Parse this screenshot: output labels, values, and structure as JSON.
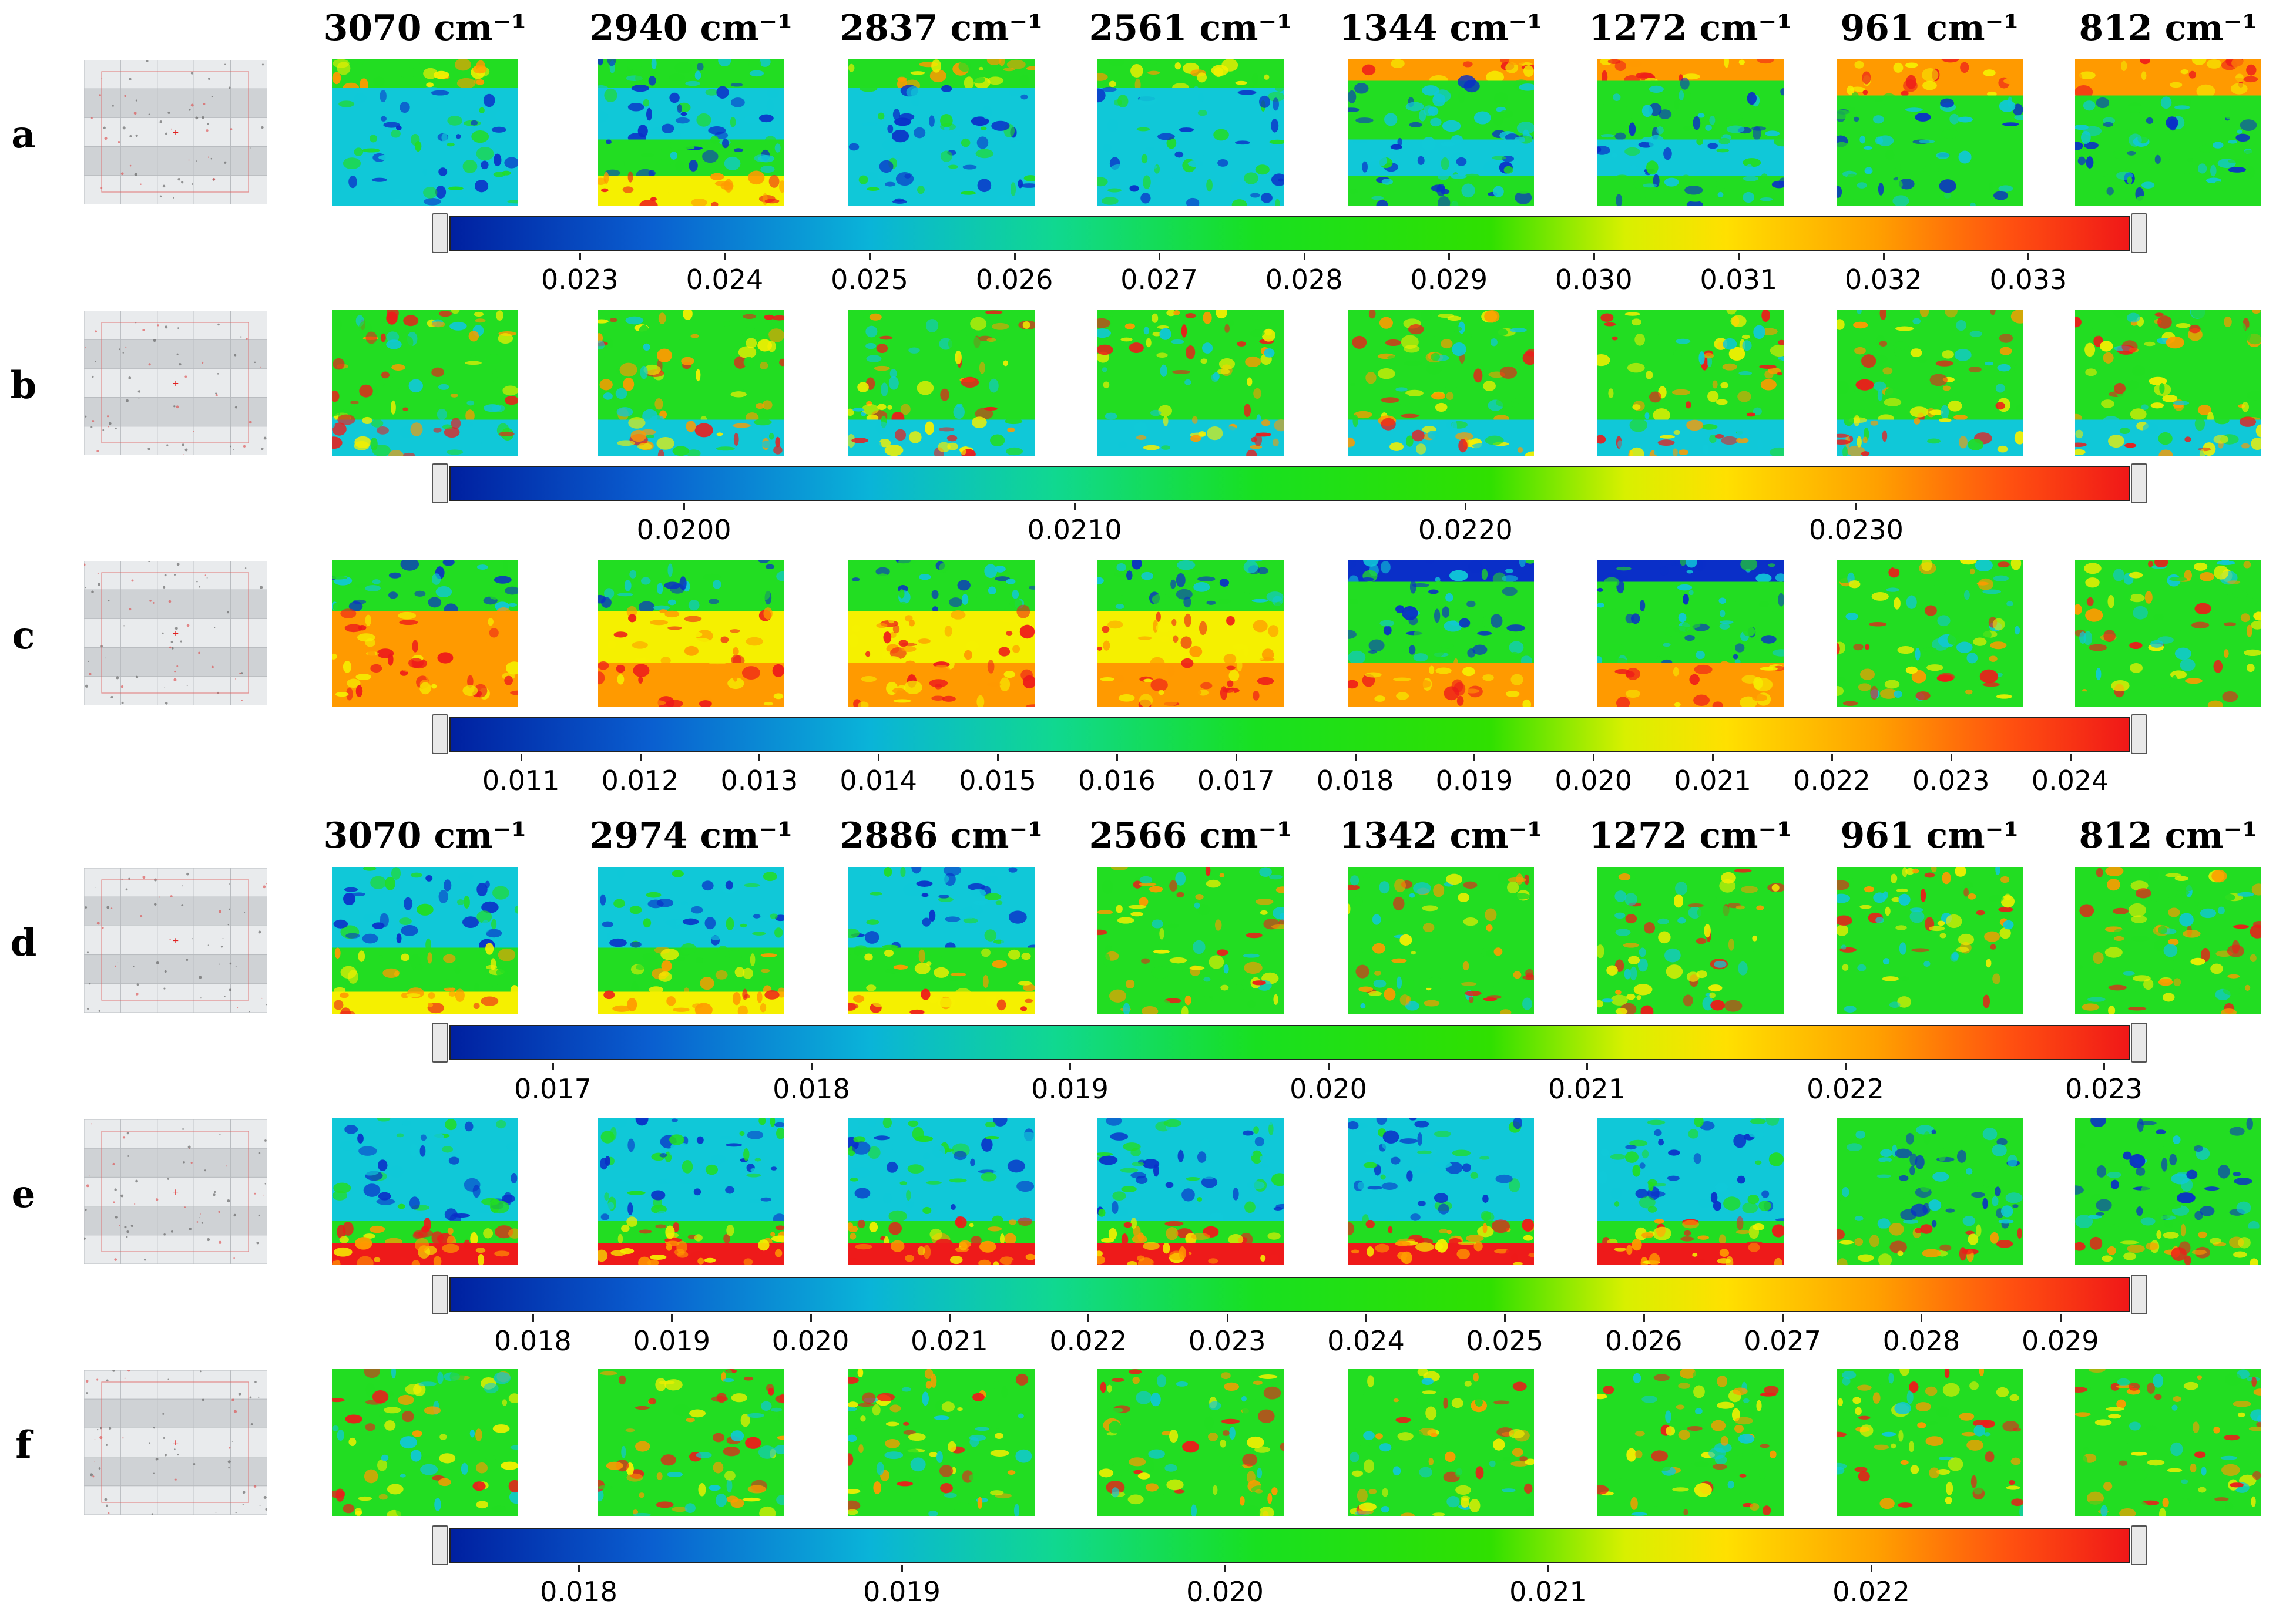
{
  "figure": {
    "headers_top": [
      "3070 cm⁻¹",
      "2940 cm⁻¹",
      "2837 cm⁻¹",
      "2561 cm⁻¹",
      "1344 cm⁻¹",
      "1272 cm⁻¹",
      "961 cm⁻¹",
      "812 cm⁻¹"
    ],
    "headers_bottom": [
      "3070 cm⁻¹",
      "2974 cm⁻¹",
      "2886 cm⁻¹",
      "2566 cm⁻¹",
      "1342 cm⁻¹",
      "1272 cm⁻¹",
      "961 cm⁻¹",
      "812 cm⁻¹"
    ],
    "rows": [
      {
        "label": "a",
        "ticks": [
          "0.023",
          "0.024",
          "0.025",
          "0.026",
          "0.027",
          "0.028",
          "0.029",
          "0.030",
          "0.031",
          "0.032",
          "0.033"
        ],
        "scale_range": [
          0.0221,
          0.0337
        ]
      },
      {
        "label": "b",
        "ticks": [
          "0.0200",
          "0.0210",
          "0.0220",
          "0.0230"
        ],
        "scale_range": [
          0.0194,
          0.0237
        ]
      },
      {
        "label": "c",
        "ticks": [
          "0.011",
          "0.012",
          "0.013",
          "0.014",
          "0.015",
          "0.016",
          "0.017",
          "0.018",
          "0.019",
          "0.020",
          "0.021",
          "0.022",
          "0.023",
          "0.024"
        ],
        "scale_range": [
          0.0104,
          0.0245
        ]
      },
      {
        "label": "d",
        "ticks": [
          "0.017",
          "0.018",
          "0.019",
          "0.020",
          "0.021",
          "0.022",
          "0.023"
        ],
        "scale_range": [
          0.0166,
          0.0231
        ]
      },
      {
        "label": "e",
        "ticks": [
          "0.018",
          "0.019",
          "0.020",
          "0.021",
          "0.022",
          "0.023",
          "0.024",
          "0.025",
          "0.026",
          "0.027",
          "0.028",
          "0.029"
        ],
        "scale_range": [
          0.0174,
          0.0295
        ]
      },
      {
        "label": "f",
        "ticks": [
          "0.018",
          "0.019",
          "0.020",
          "0.021",
          "0.022"
        ],
        "scale_range": [
          0.0176,
          0.0228
        ]
      }
    ],
    "colors": {
      "blue": "#0a2fc8",
      "cyan": "#10c8d8",
      "green": "#22dd22",
      "yellow": "#f5f000",
      "orange": "#ff9a00",
      "red": "#ee1a1a"
    }
  }
}
